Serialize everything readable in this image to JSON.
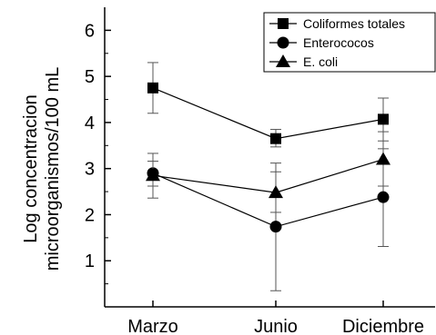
{
  "chart_data": {
    "type": "line",
    "categories": [
      "Marzo",
      "Junio",
      "Diciembre"
    ],
    "ylabel_lines": [
      "Log concentracion",
      "microorganismos/100 mL"
    ],
    "ylim": [
      0,
      6.5
    ],
    "yticks": [
      1,
      2,
      3,
      4,
      5,
      6
    ],
    "grid": false,
    "legend_position": "top-right",
    "series": [
      {
        "name": "Coliformes totales",
        "marker": "square",
        "values": [
          4.75,
          3.65,
          4.07
        ],
        "err_low": [
          4.2,
          3.47,
          3.6
        ],
        "err_high": [
          5.3,
          3.85,
          4.53
        ]
      },
      {
        "name": "Enterococos",
        "marker": "circle",
        "values": [
          2.9,
          1.74,
          2.38
        ],
        "err_low": [
          2.62,
          0.35,
          1.31
        ],
        "err_high": [
          3.16,
          3.12,
          3.43
        ]
      },
      {
        "name": "E. coli",
        "marker": "triangle",
        "values": [
          2.85,
          2.48,
          3.2
        ],
        "err_low": [
          2.36,
          2.05,
          2.62
        ],
        "err_high": [
          3.33,
          2.93,
          3.8
        ]
      }
    ]
  }
}
